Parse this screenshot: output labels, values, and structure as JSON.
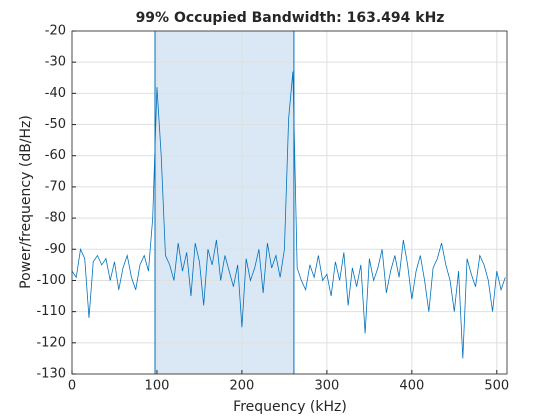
{
  "chart_data": {
    "type": "line",
    "title": "99% Occupied Bandwidth: 163.494 kHz",
    "xlabel": "Frequency (kHz)",
    "ylabel": "Power/frequency (dB/Hz)",
    "xlim": [
      0,
      512
    ],
    "ylim": [
      -130,
      -20
    ],
    "xticks": [
      0,
      100,
      200,
      300,
      400,
      500
    ],
    "yticks": [
      -130,
      -120,
      -110,
      -100,
      -90,
      -80,
      -70,
      -60,
      -50,
      -40,
      -30,
      -20
    ],
    "grid": true,
    "color": "#0072bd",
    "band": [
      97.7,
      261.2
    ],
    "band_color": "#dae8f5",
    "x": [
      0,
      5,
      10,
      15,
      20,
      25,
      30,
      35,
      40,
      45,
      50,
      55,
      60,
      65,
      70,
      75,
      80,
      85,
      90,
      95,
      100,
      105,
      110,
      115,
      120,
      125,
      130,
      135,
      140,
      145,
      150,
      155,
      160,
      165,
      170,
      175,
      180,
      185,
      190,
      195,
      200,
      205,
      210,
      215,
      220,
      225,
      230,
      235,
      240,
      245,
      250,
      255,
      260,
      265,
      270,
      275,
      280,
      285,
      290,
      295,
      300,
      305,
      310,
      315,
      320,
      325,
      330,
      335,
      340,
      345,
      350,
      355,
      360,
      365,
      370,
      375,
      380,
      385,
      390,
      395,
      400,
      405,
      410,
      415,
      420,
      425,
      430,
      435,
      440,
      445,
      450,
      455,
      460,
      465,
      470,
      475,
      480,
      485,
      490,
      495,
      500,
      505,
      510
    ],
    "values": [
      -97,
      -99,
      -90,
      -93,
      -112,
      -94,
      -92,
      -95,
      -93,
      -100,
      -94,
      -103,
      -96,
      -92,
      -99,
      -103,
      -95,
      -92,
      -97,
      -80,
      -38,
      -60,
      -92,
      -95,
      -100,
      -88,
      -97,
      -91,
      -105,
      -88,
      -94,
      -108,
      -90,
      -95,
      -87,
      -100,
      -92,
      -97,
      -102,
      -95,
      -115,
      -93,
      -100,
      -96,
      -90,
      -104,
      -88,
      -96,
      -92,
      -99,
      -90,
      -48,
      -33,
      -96,
      -100,
      -103,
      -95,
      -99,
      -92,
      -100,
      -98,
      -105,
      -94,
      -100,
      -91,
      -108,
      -96,
      -102,
      -95,
      -117,
      -93,
      -100,
      -96,
      -90,
      -104,
      -97,
      -92,
      -99,
      -87,
      -95,
      -106,
      -97,
      -92,
      -100,
      -110,
      -96,
      -93,
      -88,
      -95,
      -100,
      -110,
      -97,
      -125,
      -93,
      -98,
      -102,
      -92,
      -95,
      -100,
      -110,
      -97,
      -103,
      -99
    ]
  }
}
